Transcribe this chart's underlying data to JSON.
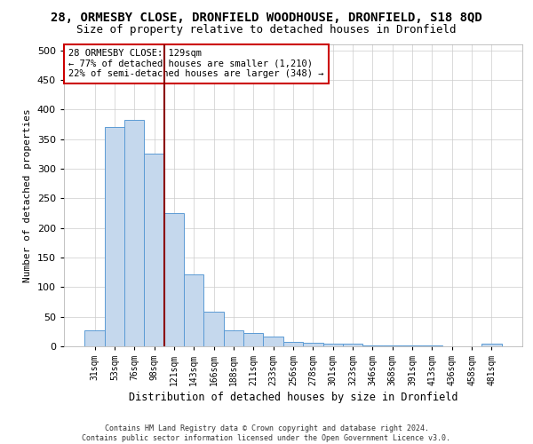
{
  "title_line1": "28, ORMESBY CLOSE, DRONFIELD WOODHOUSE, DRONFIELD, S18 8QD",
  "title_line2": "Size of property relative to detached houses in Dronfield",
  "xlabel": "Distribution of detached houses by size in Dronfield",
  "ylabel": "Number of detached properties",
  "footnote": "Contains HM Land Registry data © Crown copyright and database right 2024.\nContains public sector information licensed under the Open Government Licence v3.0.",
  "categories": [
    "31sqm",
    "53sqm",
    "76sqm",
    "98sqm",
    "121sqm",
    "143sqm",
    "166sqm",
    "188sqm",
    "211sqm",
    "233sqm",
    "256sqm",
    "278sqm",
    "301sqm",
    "323sqm",
    "346sqm",
    "368sqm",
    "391sqm",
    "413sqm",
    "436sqm",
    "458sqm",
    "481sqm"
  ],
  "values": [
    27,
    370,
    383,
    326,
    225,
    121,
    58,
    27,
    22,
    17,
    8,
    6,
    4,
    5,
    1,
    1,
    1,
    1,
    0,
    0,
    5
  ],
  "bar_color": "#c5d8ed",
  "bar_edge_color": "#5b9bd5",
  "vline_color": "#8b0000",
  "annotation_text": "28 ORMESBY CLOSE: 129sqm\n← 77% of detached houses are smaller (1,210)\n22% of semi-detached houses are larger (348) →",
  "annotation_box_color": "white",
  "annotation_box_edge_color": "#cc0000",
  "ylim": [
    0,
    510
  ],
  "yticks": [
    0,
    50,
    100,
    150,
    200,
    250,
    300,
    350,
    400,
    450,
    500
  ],
  "title1_fontsize": 10,
  "title2_fontsize": 9,
  "background_color": "white",
  "grid_color": "#cccccc"
}
